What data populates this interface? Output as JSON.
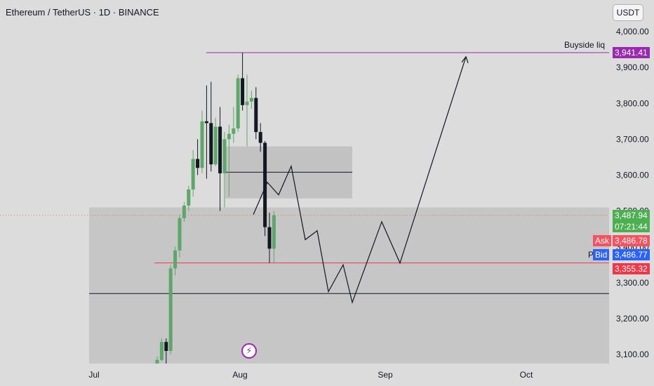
{
  "header": {
    "symbol_title": "Ethereum / TetherUS · 1D · BINANCE",
    "currency_label": "USDT"
  },
  "chart_data": {
    "type": "candlestick",
    "title": "Ethereum / TetherUS · 1D · BINANCE",
    "xlabel": "",
    "ylabel": "",
    "ylim": [
      3080,
      4010
    ],
    "x_tick_labels": [
      "Jul",
      "Aug",
      "Sep",
      "Oct"
    ],
    "y_tick_labels": [
      "3,100.00",
      "3,200.00",
      "3,300.00",
      "3,400.00",
      "3,500.00",
      "3,600.00",
      "3,700.00",
      "3,800.00",
      "3,900.00",
      "4,000.00"
    ],
    "y_ticks": [
      3100,
      3200,
      3300,
      3400,
      3500,
      3600,
      3700,
      3800,
      3900,
      4000
    ],
    "candles": [
      {
        "o": 3050,
        "h": 3095,
        "l": 2990,
        "c": 3085
      },
      {
        "o": 3085,
        "h": 3145,
        "l": 3080,
        "c": 3135
      },
      {
        "o": 3135,
        "h": 3145,
        "l": 3070,
        "c": 3110
      },
      {
        "o": 3110,
        "h": 3350,
        "l": 3100,
        "c": 3340
      },
      {
        "o": 3340,
        "h": 3400,
        "l": 3320,
        "c": 3390
      },
      {
        "o": 3390,
        "h": 3490,
        "l": 3370,
        "c": 3480
      },
      {
        "o": 3480,
        "h": 3525,
        "l": 3470,
        "c": 3515
      },
      {
        "o": 3515,
        "h": 3570,
        "l": 3500,
        "c": 3560
      },
      {
        "o": 3560,
        "h": 3670,
        "l": 3540,
        "c": 3645
      },
      {
        "o": 3645,
        "h": 3700,
        "l": 3600,
        "c": 3620
      },
      {
        "o": 3620,
        "h": 3780,
        "l": 3605,
        "c": 3750
      },
      {
        "o": 3750,
        "h": 3850,
        "l": 3590,
        "c": 3745
      },
      {
        "o": 3745,
        "h": 3860,
        "l": 3610,
        "c": 3630
      },
      {
        "o": 3630,
        "h": 3760,
        "l": 3625,
        "c": 3735
      },
      {
        "o": 3735,
        "h": 3790,
        "l": 3500,
        "c": 3605
      },
      {
        "o": 3605,
        "h": 3720,
        "l": 3510,
        "c": 3700
      },
      {
        "o": 3700,
        "h": 3740,
        "l": 3540,
        "c": 3715
      },
      {
        "o": 3715,
        "h": 3790,
        "l": 3690,
        "c": 3730
      },
      {
        "o": 3730,
        "h": 3880,
        "l": 3720,
        "c": 3870
      },
      {
        "o": 3870,
        "h": 3941.41,
        "l": 3780,
        "c": 3795
      },
      {
        "o": 3795,
        "h": 3880,
        "l": 3680,
        "c": 3805
      },
      {
        "o": 3805,
        "h": 3835,
        "l": 3785,
        "c": 3815
      },
      {
        "o": 3815,
        "h": 3845,
        "l": 3700,
        "c": 3720
      },
      {
        "o": 3720,
        "h": 3745,
        "l": 3665,
        "c": 3690
      },
      {
        "o": 3690,
        "h": 3695,
        "l": 3430,
        "c": 3455
      },
      {
        "o": 3455,
        "h": 3495,
        "l": 3355,
        "c": 3395
      },
      {
        "o": 3395,
        "h": 3500,
        "l": 3355.32,
        "c": 3487.94
      }
    ],
    "last_price": 3487.94,
    "ask": 3486.78,
    "bid": 3486.77,
    "support_level": 3355.32,
    "buyside_liquidity": 3941.41,
    "lower_level": 3270,
    "upper_zone": {
      "low": 3535,
      "high": 3680,
      "mid": 3608
    },
    "demand_zone": {
      "low": 3080,
      "high": 3510
    },
    "projection_path": [
      {
        "date_offset": 0,
        "price": 3490
      },
      {
        "date_offset": 1,
        "price": 3580
      },
      {
        "date_offset": 2,
        "price": 3545
      },
      {
        "date_offset": 3,
        "price": 3625
      },
      {
        "date_offset": 4,
        "price": 3420
      },
      {
        "date_offset": 5,
        "price": 3445
      },
      {
        "date_offset": 6,
        "price": 3275
      },
      {
        "date_offset": 7,
        "price": 3350
      },
      {
        "date_offset": 8,
        "price": 3245
      },
      {
        "date_offset": 9,
        "price": 3470
      },
      {
        "date_offset": 10,
        "price": 3355
      },
      {
        "date_offset": 11,
        "price": 3930
      }
    ]
  },
  "price_tags": {
    "last_price": "3,487.94",
    "countdown": "07:21:44",
    "ask_label": "Ask",
    "ask_price": "3,486.78",
    "bid_label": "Bid",
    "bid_price": "3,486.77",
    "support_price": "3,355.32",
    "buyside_price": "3,941.41"
  },
  "annotations": {
    "buyside_label": "Buyside liq",
    "p_label": "P"
  },
  "colors": {
    "up": "#5ea66a",
    "down": "#131722",
    "buyside": "#9c27b0",
    "support": "#f23645",
    "ask": "#f7525f",
    "bid": "#2962ff",
    "last": "#4caf50",
    "background": "#dcdcdc"
  },
  "icons": {
    "event": "lightning-icon"
  }
}
